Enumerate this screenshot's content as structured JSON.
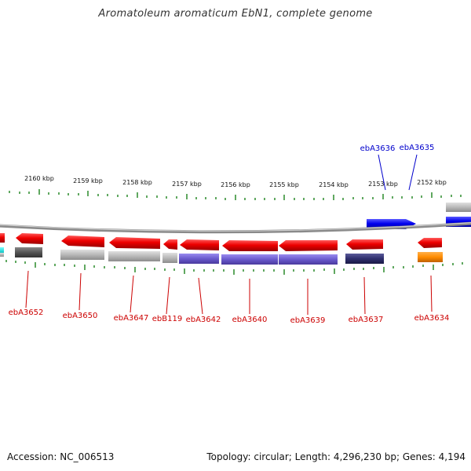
{
  "title": "Aromatoleum aromaticum EbN1, complete genome",
  "footer": {
    "accession": "Accession: NC_006513",
    "summary": "Topology: circular; Length: 4,296,230 bp; Genes: 4,194"
  },
  "colors": {
    "forward": "#0000ee",
    "reverse": "#ee0000",
    "cyan": "#00dede",
    "orange": "#ff8c00",
    "purple": "#6a5acd",
    "navy": "#2f2f6e",
    "gray": "#b8b8b8",
    "darkgray": "#555555",
    "tick": "#2a8a2a"
  },
  "ruler_labels": [
    "2160 kbp",
    "2159 kbp",
    "2158 kbp",
    "2157 kbp",
    "2156 kbp",
    "2155 kbp",
    "2154 kbp",
    "2153 kbp",
    "2152 kbp"
  ],
  "gene_labels_forward": [
    "ebA3636",
    "ebA3635"
  ],
  "gene_labels_reverse": [
    "ebA3652",
    "ebA3650",
    "ebA3647",
    "ebB119",
    "ebA3642",
    "ebA3640",
    "ebA3639",
    "ebA3637",
    "ebA3634"
  ]
}
